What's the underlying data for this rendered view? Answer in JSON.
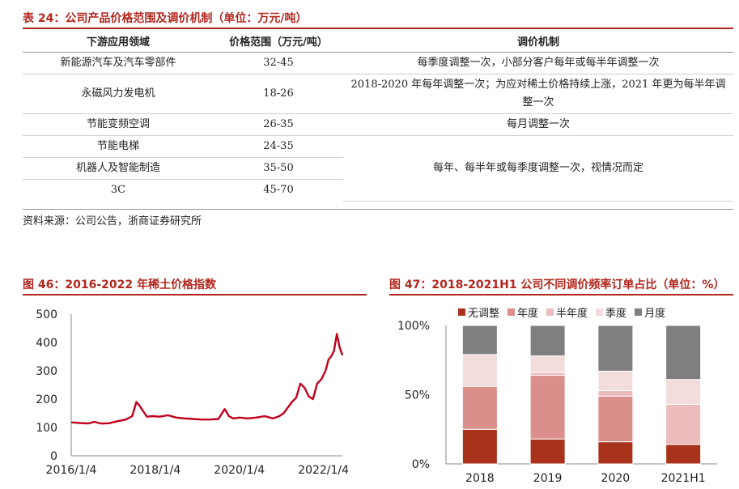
{
  "table": {
    "title": "表 24：公司产品价格范围及调价机制（单位：万元/吨）",
    "headers": [
      "下游应用领域",
      "价格范围（万元/吨）",
      "调价机制"
    ],
    "rows": [
      {
        "field": "新能源汽车及汽车零部件",
        "price": "32-45",
        "mechanism": "每季度调整一次，小部分客户每年或每半年调整一次"
      },
      {
        "field": "永磁风力发电机",
        "price": "18-26",
        "mechanism": "2018-2020 年每年调整一次；为应对稀土价格持续上涨，2021 年更为每半年调整一次"
      },
      {
        "field": "节能变频空调",
        "price": "26-35",
        "mechanism": "每月调整一次"
      },
      {
        "field": "节能电梯",
        "price": "24-35",
        "mechanism": "每年、每半年或每季度调整一次，视情况而定"
      },
      {
        "field": "机器人及智能制造",
        "price": "35-50"
      },
      {
        "field": "3C",
        "price": "45-70"
      }
    ],
    "source": "资料来源：公司公告，浙商证券研究所"
  },
  "chart_left": {
    "caption": "图 46：2016-2022 年稀土价格指数",
    "chart_data": {
      "type": "line",
      "title": "",
      "xlabel": "",
      "ylabel": "",
      "x_ticks": [
        "2016/1/4",
        "2018/1/4",
        "2020/1/4",
        "2022/1/4"
      ],
      "y_ticks": [
        0,
        100,
        200,
        300,
        400,
        500
      ],
      "ylim": [
        0,
        500
      ],
      "xlim": [
        2016.0,
        2022.45
      ],
      "grid": false,
      "series": [
        {
          "color": "#c0001a",
          "x": [
            2016.0,
            2016.2,
            2016.4,
            2016.55,
            2016.7,
            2016.9,
            2017.1,
            2017.3,
            2017.45,
            2017.55,
            2017.62,
            2017.7,
            2017.8,
            2017.95,
            2018.1,
            2018.3,
            2018.5,
            2018.7,
            2018.9,
            2019.1,
            2019.3,
            2019.5,
            2019.65,
            2019.75,
            2019.85,
            2020.0,
            2020.2,
            2020.4,
            2020.6,
            2020.8,
            2020.95,
            2021.05,
            2021.15,
            2021.25,
            2021.35,
            2021.45,
            2021.55,
            2021.65,
            2021.75,
            2021.85,
            2021.95,
            2022.05,
            2022.12,
            2022.18,
            2022.25,
            2022.32,
            2022.38,
            2022.45
          ],
          "y": [
            118,
            116,
            114,
            120,
            114,
            115,
            122,
            128,
            140,
            190,
            178,
            160,
            138,
            140,
            138,
            143,
            135,
            132,
            130,
            128,
            128,
            130,
            165,
            140,
            132,
            135,
            132,
            135,
            140,
            132,
            140,
            150,
            170,
            190,
            205,
            255,
            240,
            210,
            200,
            255,
            270,
            300,
            340,
            350,
            370,
            430,
            385,
            355
          ]
        }
      ]
    }
  },
  "chart_right": {
    "caption": "图 47：2018-2021H1 公司不同调价频率订单占比（单位：%）",
    "chart_data": {
      "type": "bar",
      "stacked": true,
      "title": "",
      "categories": [
        "2018",
        "2019",
        "2020",
        "2021H1"
      ],
      "y_ticks": [
        "0%",
        "50%",
        "100%"
      ],
      "ylim": [
        0,
        100
      ],
      "legend_position": "top",
      "series": [
        {
          "name": "无调整",
          "color": "#a8321a",
          "values": [
            25,
            18,
            16,
            14
          ]
        },
        {
          "name": "年度",
          "color": "#da8f8b",
          "values": [
            31,
            46,
            33,
            0
          ]
        },
        {
          "name": "半年度",
          "color": "#ecbcbc",
          "values": [
            0,
            2,
            4,
            29
          ]
        },
        {
          "name": "季度",
          "color": "#f3dcdc",
          "values": [
            23,
            12,
            14,
            18
          ]
        },
        {
          "name": "月度",
          "color": "#7f7f7f",
          "values": [
            21,
            22,
            33,
            39
          ]
        }
      ]
    }
  }
}
